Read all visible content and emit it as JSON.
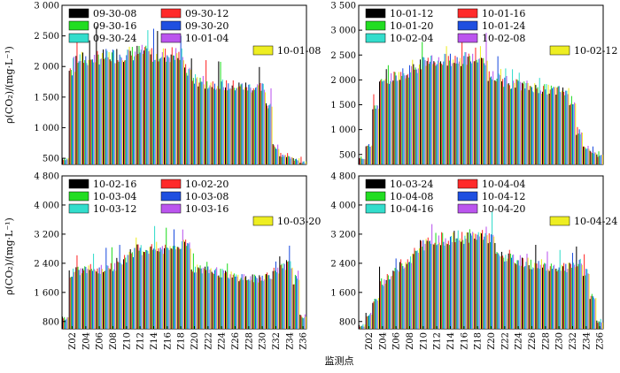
{
  "figure": {
    "ylabel": "ρ(CO₂)/(mg·L⁻¹)",
    "xlabel": "监测点"
  },
  "chart_data": [
    {
      "type": "bar",
      "panel": "top-left",
      "ylim": [
        400,
        3000
      ],
      "yticks": [
        500,
        1000,
        1500,
        2000,
        2500,
        3000
      ],
      "ytick_labels": [
        "500",
        "1 000",
        "1 500",
        "2 000",
        "2 500",
        "3 000"
      ],
      "categories": [
        "Z01",
        "Z02",
        "Z03",
        "Z04",
        "Z05",
        "Z06",
        "Z07",
        "Z08",
        "Z09",
        "Z10",
        "Z11",
        "Z12",
        "Z13",
        "Z14",
        "Z15",
        "Z16",
        "Z17",
        "Z18",
        "Z19",
        "Z20",
        "Z21",
        "Z22",
        "Z23",
        "Z24",
        "Z25",
        "Z26",
        "Z27",
        "Z28",
        "Z29",
        "Z30",
        "Z31",
        "Z32",
        "Z33",
        "Z34",
        "Z35",
        "Z36"
      ],
      "xtick_labels": [],
      "legend": [
        "09-30-08",
        "09-30-12",
        "09-30-16",
        "09-30-20",
        "09-30-24",
        "10-01-04",
        "10-01-08"
      ],
      "colors": [
        "#000000",
        "#ff2a2a",
        "#22dd22",
        "#1f4fe0",
        "#33ddcc",
        "#bb55ee",
        "#eeee22"
      ],
      "series_profile": [
        500,
        1950,
        2150,
        2150,
        2150,
        2180,
        2180,
        2200,
        2220,
        2230,
        2240,
        2250,
        2230,
        2220,
        2230,
        2210,
        2230,
        2200,
        1950,
        1820,
        1780,
        1750,
        1740,
        1720,
        1700,
        1700,
        1690,
        1680,
        1670,
        1660,
        1400,
        700,
        560,
        520,
        480,
        440
      ]
    },
    {
      "type": "bar",
      "panel": "top-right",
      "ylim": [
        300,
        3500
      ],
      "yticks": [
        500,
        1000,
        1500,
        2000,
        2500,
        3000,
        3500
      ],
      "ytick_labels": [
        "500",
        "1 000",
        "1 500",
        "2 000",
        "2 500",
        "3 000",
        "3 500"
      ],
      "categories": [
        "Z01",
        "Z02",
        "Z03",
        "Z04",
        "Z05",
        "Z06",
        "Z07",
        "Z08",
        "Z09",
        "Z10",
        "Z11",
        "Z12",
        "Z13",
        "Z14",
        "Z15",
        "Z16",
        "Z17",
        "Z18",
        "Z19",
        "Z20",
        "Z21",
        "Z22",
        "Z23",
        "Z24",
        "Z25",
        "Z26",
        "Z27",
        "Z28",
        "Z29",
        "Z30",
        "Z31",
        "Z32",
        "Z33",
        "Z34",
        "Z35",
        "Z36"
      ],
      "xtick_labels": [],
      "legend": [
        "10-01-12",
        "10-01-16",
        "10-01-20",
        "10-01-24",
        "10-02-04",
        "10-02-08",
        "10-02-12"
      ],
      "colors": [
        "#000000",
        "#ff2a2a",
        "#22dd22",
        "#1f4fe0",
        "#33ddcc",
        "#bb55ee",
        "#eeee22"
      ],
      "series_profile": [
        420,
        700,
        1500,
        1950,
        2050,
        2100,
        2150,
        2200,
        2250,
        2350,
        2450,
        2400,
        2420,
        2420,
        2430,
        2440,
        2440,
        2450,
        2430,
        2100,
        2050,
        2000,
        1950,
        1920,
        1900,
        1880,
        1850,
        1830,
        1820,
        1800,
        1780,
        1600,
        900,
        650,
        560,
        480
      ]
    },
    {
      "type": "bar",
      "panel": "bottom-left",
      "ylim": [
        600,
        4800
      ],
      "yticks": [
        800,
        1600,
        2400,
        3200,
        4000,
        4800
      ],
      "ytick_labels": [
        "800",
        "1 600",
        "2 400",
        "3 200",
        "4 000",
        "4 800"
      ],
      "categories": [
        "Z01",
        "Z02",
        "Z03",
        "Z04",
        "Z05",
        "Z06",
        "Z07",
        "Z08",
        "Z09",
        "Z10",
        "Z11",
        "Z12",
        "Z13",
        "Z14",
        "Z15",
        "Z16",
        "Z17",
        "Z18",
        "Z19",
        "Z20",
        "Z21",
        "Z22",
        "Z23",
        "Z24",
        "Z25",
        "Z26",
        "Z27",
        "Z28",
        "Z29",
        "Z30",
        "Z31",
        "Z32",
        "Z33",
        "Z34",
        "Z35",
        "Z36"
      ],
      "xtick_labels": [
        "Z02",
        "Z04",
        "Z06",
        "Z08",
        "Z10",
        "Z12",
        "Z14",
        "Z16",
        "Z18",
        "Z20",
        "Z22",
        "Z24",
        "Z26",
        "Z28",
        "Z30",
        "Z32",
        "Z34",
        "Z36"
      ],
      "legend": [
        "10-02-16",
        "10-02-20",
        "10-03-04",
        "10-03-08",
        "10-03-12",
        "10-03-16",
        "10-03-20"
      ],
      "colors": [
        "#000000",
        "#ff2a2a",
        "#22dd22",
        "#1f4fe0",
        "#33ddcc",
        "#bb55ee",
        "#eeee22"
      ],
      "series_profile": [
        900,
        2150,
        2200,
        2250,
        2300,
        2250,
        2300,
        2350,
        2450,
        2600,
        2750,
        2800,
        2820,
        2850,
        2800,
        2870,
        2880,
        2900,
        2950,
        2300,
        2250,
        2250,
        2200,
        2150,
        2100,
        2050,
        2050,
        2000,
        2000,
        2050,
        2100,
        2200,
        2300,
        2400,
        1900,
        950
      ]
    },
    {
      "type": "bar",
      "panel": "bottom-right",
      "ylim": [
        600,
        4800
      ],
      "yticks": [
        800,
        1600,
        2400,
        3200,
        4000,
        4800
      ],
      "ytick_labels": [
        "800",
        "1 600",
        "2 400",
        "3 200",
        "4 000",
        "4 800"
      ],
      "categories": [
        "Z01",
        "Z02",
        "Z03",
        "Z04",
        "Z05",
        "Z06",
        "Z07",
        "Z08",
        "Z09",
        "Z10",
        "Z11",
        "Z12",
        "Z13",
        "Z14",
        "Z15",
        "Z16",
        "Z17",
        "Z18",
        "Z19",
        "Z20",
        "Z21",
        "Z22",
        "Z23",
        "Z24",
        "Z25",
        "Z26",
        "Z27",
        "Z28",
        "Z29",
        "Z30",
        "Z31",
        "Z32",
        "Z33",
        "Z34",
        "Z35",
        "Z36"
      ],
      "xtick_labels": [
        "Z02",
        "Z04",
        "Z06",
        "Z08",
        "Z10",
        "Z12",
        "Z14",
        "Z16",
        "Z18",
        "Z20",
        "Z22",
        "Z24",
        "Z26",
        "Z28",
        "Z30",
        "Z32",
        "Z34",
        "Z36"
      ],
      "legend": [
        "10-03-24",
        "10-04-04",
        "10-04-08",
        "10-04-12",
        "10-04-16",
        "10-04-20",
        "10-04-24"
      ],
      "colors": [
        "#000000",
        "#ff2a2a",
        "#22dd22",
        "#1f4fe0",
        "#33ddcc",
        "#bb55ee",
        "#eeee22"
      ],
      "series_profile": [
        700,
        1000,
        1400,
        1900,
        2050,
        2250,
        2400,
        2550,
        2750,
        2950,
        3050,
        3100,
        3100,
        3100,
        3150,
        3150,
        3180,
        3200,
        3250,
        3150,
        2650,
        2600,
        2550,
        2500,
        2450,
        2400,
        2400,
        2350,
        2350,
        2300,
        2300,
        2350,
        2400,
        2200,
        1500,
        800
      ]
    }
  ]
}
